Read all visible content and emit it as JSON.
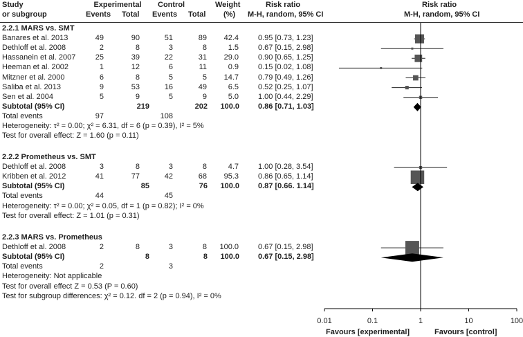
{
  "headers": {
    "study": [
      "Study",
      "or subgroup"
    ],
    "experimental": "Experimental",
    "control": "Control",
    "events": "Events",
    "total": "Total",
    "weight": [
      "Weight",
      "(%)"
    ],
    "risk_ratio": [
      "Risk ratio",
      "M-H, random, 95% CI"
    ]
  },
  "groups": [
    {
      "title": "2.2.1 MARS vs. SMT",
      "studies": [
        {
          "name": "Banares et al. 2013",
          "e_ev": "49",
          "e_tot": "90",
          "c_ev": "51",
          "c_tot": "89",
          "weight": "42.4",
          "ci": "0.95 [0.73, 1.23]"
        },
        {
          "name": "Dethloff et al. 2008",
          "e_ev": "2",
          "e_tot": "8",
          "c_ev": "3",
          "c_tot": "8",
          "weight": "1.5",
          "ci": "0.67 [0.15, 2.98]"
        },
        {
          "name": "Hassanein et al. 2007",
          "e_ev": "25",
          "e_tot": "39",
          "c_ev": "22",
          "c_tot": "31",
          "weight": "29.0",
          "ci": "0.90 [0.65, 1.25]"
        },
        {
          "name": "Heeman et al. 2002",
          "e_ev": "1",
          "e_tot": "12",
          "c_ev": "6",
          "c_tot": "11",
          "weight": "0.9",
          "ci": "0.15 [0.02, 1.08]"
        },
        {
          "name": "Mitzner et al. 2000",
          "e_ev": "6",
          "e_tot": "8",
          "c_ev": "5",
          "c_tot": "5",
          "weight": "14.7",
          "ci": "0.79 [0.49, 1.26]"
        },
        {
          "name": "Saliba et al. 2013",
          "e_ev": "9",
          "e_tot": "53",
          "c_ev": "16",
          "c_tot": "49",
          "weight": "6.5",
          "ci": "0.52 [0.25, 1.07]"
        },
        {
          "name": "Sen et al. 2004",
          "e_ev": "5",
          "e_tot": "9",
          "c_ev": "5",
          "c_tot": "9",
          "weight": "5.0",
          "ci": "1.00 [0.44, 2.29]"
        }
      ],
      "subtotal": {
        "label": "Subtotal (95% CI)",
        "e_tot": "219",
        "c_tot": "202",
        "weight": "100.0",
        "ci": "0.86 [0.71, 1.03]"
      },
      "total_events": {
        "label": "Total events",
        "e": "97",
        "c": "108"
      },
      "heterogeneity": "Heterogeneity: τ² = 0.00; χ² = 6.31, df = 6 (p = 0.39), I² = 5%",
      "overall": "Test for overall effect: Z = 1.60 (p = 0.11)"
    },
    {
      "title": "2.2.2 Prometheus vs. SMT",
      "studies": [
        {
          "name": "Dethloff et al. 2008",
          "e_ev": "3",
          "e_tot": "8",
          "c_ev": "3",
          "c_tot": "8",
          "weight": "4.7",
          "ci": "1.00 [0.28, 3.54]"
        },
        {
          "name": "Kribben et al. 2012",
          "e_ev": "41",
          "e_tot": "77",
          "c_ev": "42",
          "c_tot": "68",
          "weight": "95.3",
          "ci": "0.86 [0.65, 1.14]"
        }
      ],
      "subtotal": {
        "label": "Subtotal (95% CI)",
        "e_tot": "85",
        "c_tot": "76",
        "weight": "100.0",
        "ci": "0.87 [0.66. 1.14]"
      },
      "total_events": {
        "label": "Total events",
        "e": "44",
        "c": "45"
      },
      "heterogeneity": "Heterogeneity: τ² = 0.00; χ² = 0.05, df = 1 (p = 0.82); I² = 0%",
      "overall": "Test for overall effect: Z = 1.01 (p = 0.31)"
    },
    {
      "title": "2.2.3 MARS vs. Prometheus",
      "studies": [
        {
          "name": "Dethloff et al. 2008",
          "e_ev": "2",
          "e_tot": "8",
          "c_ev": "3",
          "c_tot": "8",
          "weight": "100.0",
          "ci": "0.67 [0.15, 2.98]"
        }
      ],
      "subtotal": {
        "label": "Subtotal (95% CI)",
        "e_tot": "8",
        "c_tot": "8",
        "weight": "100.0",
        "ci": "0.67 [0.15, 2.98]"
      },
      "total_events": {
        "label": "Total events",
        "e": "2",
        "c": "3"
      },
      "heterogeneity": "Heterogeneity: Not applicable",
      "overall": "Test for overall effect Z = 0.53 (P = 0.60)"
    }
  ],
  "subgroup_test": "Test for subgroup differences: χ² = 0.12. df = 2 (p = 0.94), I² = 0%",
  "axis": {
    "ticks": [
      "0.01",
      "0.1",
      "1",
      "10",
      "100"
    ],
    "left_label": "Favours [experimental]",
    "right_label": "Favours [control]"
  },
  "chart_data": {
    "type": "scatter",
    "x_scale": "log",
    "xlim": [
      0.01,
      100
    ],
    "reference_line": 1,
    "series": [
      {
        "name": "Banares et al. 2013",
        "group": "2.2.1",
        "rr": 0.95,
        "lo": 0.73,
        "hi": 1.23,
        "weight": 42.4
      },
      {
        "name": "Dethloff et al. 2008",
        "group": "2.2.1",
        "rr": 0.67,
        "lo": 0.15,
        "hi": 2.98,
        "weight": 1.5
      },
      {
        "name": "Hassanein et al. 2007",
        "group": "2.2.1",
        "rr": 0.9,
        "lo": 0.65,
        "hi": 1.25,
        "weight": 29.0
      },
      {
        "name": "Heeman et al. 2002",
        "group": "2.2.1",
        "rr": 0.15,
        "lo": 0.02,
        "hi": 1.08,
        "weight": 0.9
      },
      {
        "name": "Mitzner et al. 2000",
        "group": "2.2.1",
        "rr": 0.79,
        "lo": 0.49,
        "hi": 1.26,
        "weight": 14.7
      },
      {
        "name": "Saliba et al. 2013",
        "group": "2.2.1",
        "rr": 0.52,
        "lo": 0.25,
        "hi": 1.07,
        "weight": 6.5
      },
      {
        "name": "Sen et al. 2004",
        "group": "2.2.1",
        "rr": 1.0,
        "lo": 0.44,
        "hi": 2.29,
        "weight": 5.0
      },
      {
        "name": "Dethloff et al. 2008",
        "group": "2.2.2",
        "rr": 1.0,
        "lo": 0.28,
        "hi": 3.54,
        "weight": 4.7
      },
      {
        "name": "Kribben et al. 2012",
        "group": "2.2.2",
        "rr": 0.86,
        "lo": 0.65,
        "hi": 1.14,
        "weight": 95.3
      },
      {
        "name": "Dethloff et al. 2008",
        "group": "2.2.3",
        "rr": 0.67,
        "lo": 0.15,
        "hi": 2.98,
        "weight": 100.0
      }
    ],
    "subtotals": [
      {
        "group": "2.2.1",
        "rr": 0.86,
        "lo": 0.71,
        "hi": 1.03
      },
      {
        "group": "2.2.2",
        "rr": 0.87,
        "lo": 0.66,
        "hi": 1.14
      },
      {
        "group": "2.2.3",
        "rr": 0.67,
        "lo": 0.15,
        "hi": 2.98
      }
    ],
    "colors": {
      "marker": "#555555",
      "diamond": "#000000",
      "line": "#222222"
    }
  }
}
